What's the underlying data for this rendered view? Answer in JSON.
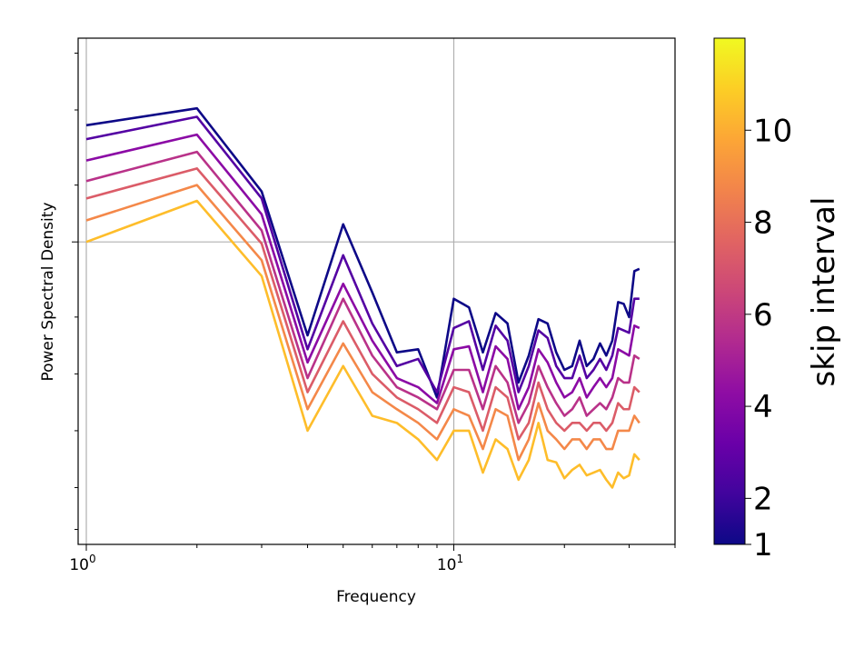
{
  "chart_data": {
    "type": "line",
    "xscale": "log",
    "yscale": "log",
    "xlabel": "Frequency",
    "ylabel": "Power Spectral Density",
    "xlim": [
      0.95,
      40
    ],
    "ylim": [
      0.0025,
      1.2
    ],
    "x_major_ticks": [
      {
        "value": 1,
        "label": "10",
        "exp": "0"
      },
      {
        "value": 10,
        "label": "10",
        "exp": "1"
      }
    ],
    "y_major_ticks": [
      0.1
    ],
    "y_minor_ticks": [
      0.003,
      0.005,
      0.01,
      0.02,
      0.04,
      0.2,
      0.5,
      1.0
    ],
    "grid": true,
    "x": [
      1,
      2,
      3,
      4,
      5,
      6,
      7,
      8,
      9,
      10,
      11,
      12,
      13,
      14,
      15,
      16,
      17,
      18,
      19,
      20,
      21,
      22,
      23,
      24,
      25,
      26,
      27,
      28,
      29,
      30,
      31,
      32
    ],
    "series": [
      {
        "name": "1",
        "skip": 1,
        "color": "#0d0887",
        "values": [
          0.415,
          0.51,
          0.185,
          0.032,
          0.124,
          0.054,
          0.026,
          0.027,
          0.015,
          0.05,
          0.045,
          0.026,
          0.042,
          0.037,
          0.018,
          0.025,
          0.039,
          0.037,
          0.026,
          0.021,
          0.022,
          0.03,
          0.022,
          0.024,
          0.029,
          0.025,
          0.03,
          0.048,
          0.047,
          0.04,
          0.07,
          0.072
        ]
      },
      {
        "name": "2",
        "skip": 2,
        "color": "#5402a3",
        "values": [
          0.35,
          0.46,
          0.17,
          0.027,
          0.085,
          0.037,
          0.022,
          0.024,
          0.016,
          0.035,
          0.038,
          0.021,
          0.036,
          0.03,
          0.016,
          0.022,
          0.034,
          0.031,
          0.022,
          0.019,
          0.019,
          0.025,
          0.019,
          0.021,
          0.024,
          0.021,
          0.025,
          0.035,
          0.034,
          0.033,
          0.05,
          0.05
        ]
      },
      {
        "name": "4",
        "skip": 4,
        "color": "#8b0aa5",
        "values": [
          0.27,
          0.37,
          0.14,
          0.023,
          0.06,
          0.03,
          0.019,
          0.017,
          0.014,
          0.027,
          0.028,
          0.016,
          0.028,
          0.024,
          0.013,
          0.017,
          0.027,
          0.023,
          0.018,
          0.015,
          0.016,
          0.019,
          0.015,
          0.017,
          0.019,
          0.017,
          0.019,
          0.027,
          0.026,
          0.025,
          0.036,
          0.035
        ]
      },
      {
        "name": "6",
        "skip": 6,
        "color": "#b93289",
        "values": [
          0.21,
          0.3,
          0.115,
          0.019,
          0.05,
          0.025,
          0.017,
          0.015,
          0.013,
          0.021,
          0.021,
          0.013,
          0.022,
          0.018,
          0.011,
          0.014,
          0.022,
          0.017,
          0.014,
          0.012,
          0.013,
          0.015,
          0.012,
          0.013,
          0.014,
          0.013,
          0.015,
          0.019,
          0.018,
          0.018,
          0.025,
          0.024
        ]
      },
      {
        "name": "8",
        "skip": 8,
        "color": "#db5c68",
        "values": [
          0.17,
          0.245,
          0.098,
          0.016,
          0.038,
          0.02,
          0.015,
          0.013,
          0.011,
          0.017,
          0.016,
          0.01,
          0.017,
          0.015,
          0.009,
          0.011,
          0.018,
          0.013,
          0.011,
          0.01,
          0.011,
          0.011,
          0.01,
          0.011,
          0.011,
          0.01,
          0.011,
          0.014,
          0.013,
          0.013,
          0.017,
          0.016
        ]
      },
      {
        "name": "10",
        "skip": 10,
        "color": "#f48849",
        "values": [
          0.13,
          0.2,
          0.08,
          0.013,
          0.029,
          0.016,
          0.013,
          0.011,
          0.009,
          0.013,
          0.012,
          0.008,
          0.013,
          0.012,
          0.007,
          0.009,
          0.014,
          0.01,
          0.009,
          0.008,
          0.009,
          0.009,
          0.008,
          0.009,
          0.009,
          0.008,
          0.008,
          0.01,
          0.01,
          0.01,
          0.012,
          0.011
        ]
      },
      {
        "name": "12",
        "skip": 12,
        "color": "#febd2a",
        "values": [
          0.1,
          0.165,
          0.066,
          0.01,
          0.022,
          0.012,
          0.011,
          0.009,
          0.007,
          0.01,
          0.01,
          0.006,
          0.009,
          0.008,
          0.0055,
          0.007,
          0.011,
          0.007,
          0.0068,
          0.0056,
          0.0062,
          0.0066,
          0.0058,
          0.006,
          0.0062,
          0.0055,
          0.005,
          0.006,
          0.0056,
          0.0058,
          0.0075,
          0.007
        ]
      }
    ],
    "colorbar": {
      "label": "skip interval",
      "vmin": 1,
      "vmax": 12,
      "ticks": [
        1,
        2,
        4,
        6,
        8,
        10
      ],
      "colormap": "plasma",
      "stops": [
        "#0d0887",
        "#41049d",
        "#6a00a8",
        "#8f0da4",
        "#b12a90",
        "#cc4778",
        "#e16462",
        "#f2844b",
        "#fca636",
        "#fcce25",
        "#f0f921"
      ]
    }
  }
}
